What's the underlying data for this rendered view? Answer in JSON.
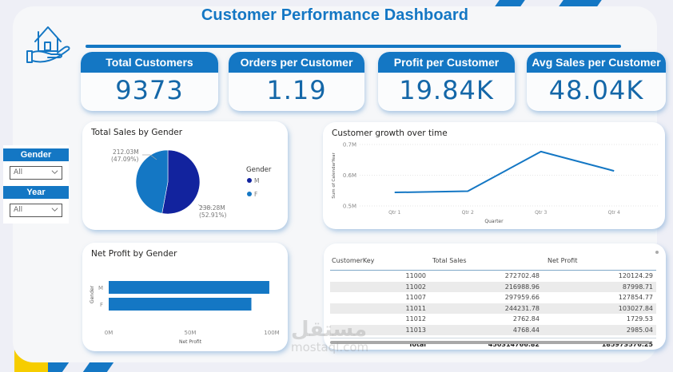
{
  "header": {
    "title": "Customer Performance Dashboard",
    "logo_icon": "house-in-hand-icon"
  },
  "kpis": [
    {
      "label": "Total Customers",
      "value": "9373"
    },
    {
      "label": "Orders per Customer",
      "value": "1.19"
    },
    {
      "label": "Profit per Customer",
      "value": "19.84K"
    },
    {
      "label": "Avg Sales per Customer",
      "value": "48.04K"
    }
  ],
  "slicers": [
    {
      "label": "Gender",
      "selected": "All"
    },
    {
      "label": "Year",
      "selected": "All"
    }
  ],
  "colors": {
    "brand": "#1477c4",
    "male": "#12239e",
    "female": "#118dff",
    "accent_yellow": "#f6cd00"
  },
  "chart_data": [
    {
      "type": "pie",
      "title": "Total Sales by Gender",
      "legend_title": "Gender",
      "legend_position": "right",
      "categories": [
        "M",
        "F"
      ],
      "values": [
        238.28,
        212.03
      ],
      "units": "M",
      "data_labels": [
        {
          "value": "238.28M",
          "percent": "(52.91%)"
        },
        {
          "value": "212.03M",
          "percent": "(47.09%)"
        }
      ],
      "colors": [
        "#12239e",
        "#1477c4"
      ]
    },
    {
      "type": "line",
      "title": "Customer growth over time",
      "xlabel": "Quarter",
      "ylabel": "Sum of CalendarYear",
      "categories": [
        "Qtr 1",
        "Qtr 2",
        "Qtr 3",
        "Qtr 4"
      ],
      "series": [
        {
          "name": "Sum of CalendarYear",
          "values": [
            0.544,
            0.548,
            0.677,
            0.614
          ]
        }
      ],
      "units": "M",
      "ylim": [
        0.5,
        0.7
      ],
      "yticks": [
        "0.5M",
        "0.6M",
        "0.7M"
      ],
      "yticks_values": [
        0.5,
        0.6,
        0.7
      ],
      "grid": true
    },
    {
      "type": "bar",
      "orientation": "horizontal",
      "title": "Net Profit by Gender",
      "xlabel": "Net Profit",
      "ylabel": "Gender",
      "categories": [
        "M",
        "F"
      ],
      "values": [
        98.5,
        87.5
      ],
      "units": "M",
      "xlim": [
        0,
        100
      ],
      "xticks": [
        "0M",
        "50M",
        "100M"
      ],
      "xticks_values": [
        0,
        50,
        100
      ],
      "color": "#1477c4"
    }
  ],
  "table": {
    "columns": [
      "CustomerKey",
      "Total Sales",
      "Net Profit"
    ],
    "rows": [
      [
        "11000",
        "272702.48",
        "120124.29"
      ],
      [
        "11002",
        "216988.96",
        "87998.71"
      ],
      [
        "11007",
        "297959.66",
        "127854.77"
      ],
      [
        "11011",
        "244231.78",
        "103027.84"
      ],
      [
        "11012",
        "2762.84",
        "1729.53"
      ],
      [
        "11013",
        "4768.44",
        "2985.04"
      ]
    ],
    "total": {
      "label": "Total",
      "total_sales": "450314766.82",
      "net_profit": "185973576.25"
    }
  },
  "watermark": {
    "arabic": "مستقل",
    "latin": "mostaql.com"
  }
}
